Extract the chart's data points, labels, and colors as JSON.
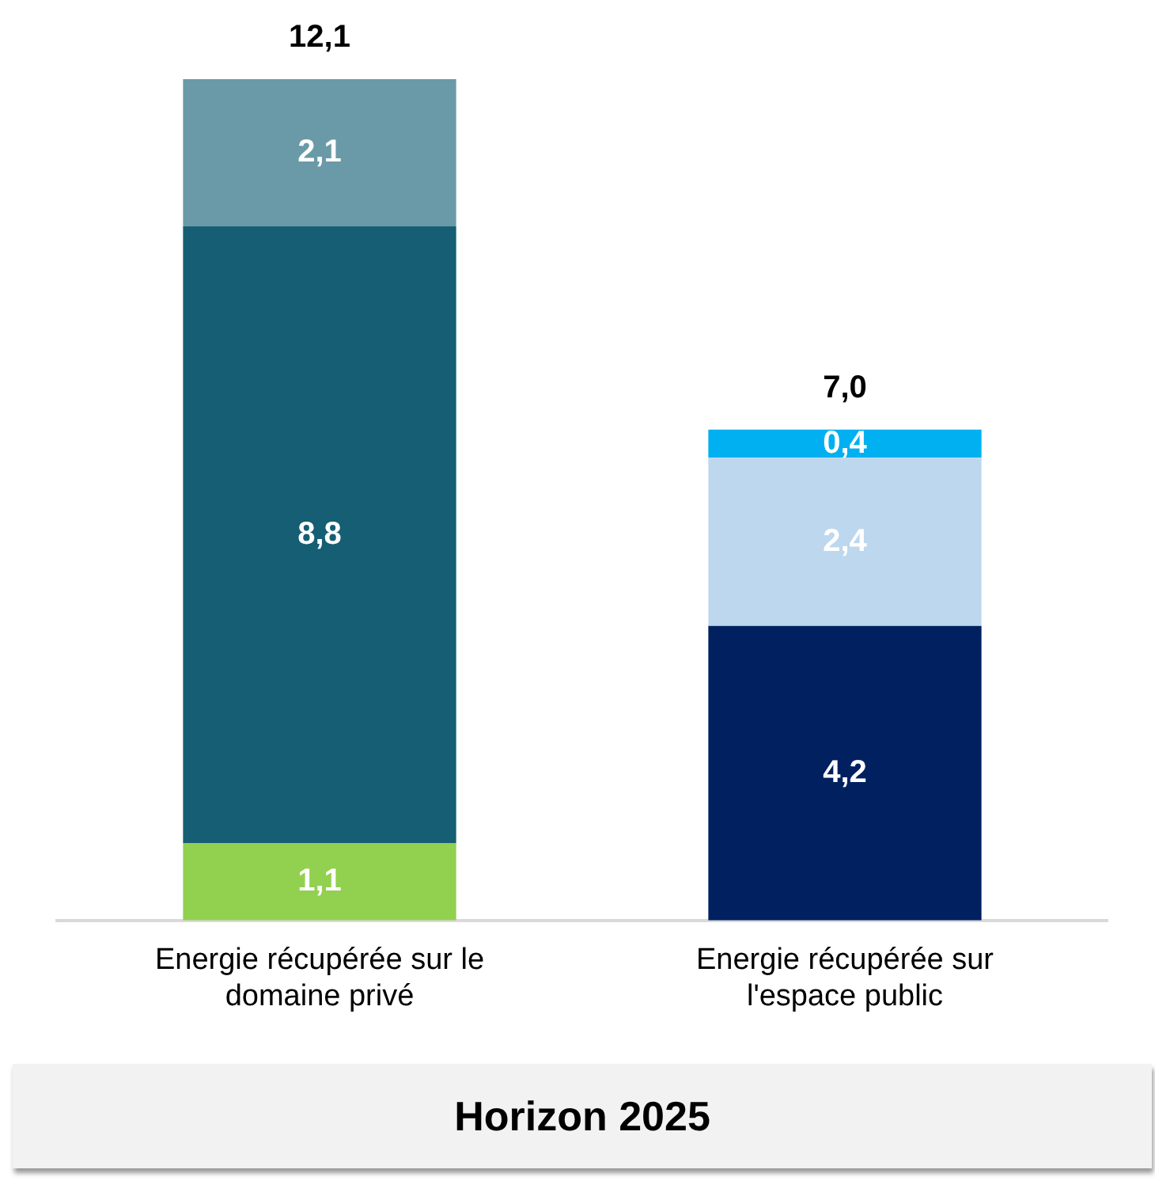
{
  "chart_data": {
    "type": "bar",
    "stacked": true,
    "xlabel": "Horizon 2025",
    "categories": [
      "Energie récupérée sur le domaine privé",
      "Energie récupérée sur l'espace public"
    ],
    "series": [
      {
        "color": "#92d050",
        "values": [
          1.1,
          null
        ],
        "value_labels": [
          "1,1",
          null
        ]
      },
      {
        "color": "#165e73",
        "values": [
          8.8,
          null
        ],
        "value_labels": [
          "8,8",
          null
        ]
      },
      {
        "color": "#6a9aa8",
        "values": [
          2.1,
          null
        ],
        "value_labels": [
          "2,1",
          null
        ]
      },
      {
        "color": "#002060",
        "values": [
          null,
          4.2
        ],
        "value_labels": [
          null,
          "4,2"
        ]
      },
      {
        "color": "#bdd7ee",
        "values": [
          null,
          2.4
        ],
        "value_labels": [
          null,
          "2,4"
        ]
      },
      {
        "color": "#00b0f0",
        "values": [
          null,
          0.4
        ],
        "value_labels": [
          null,
          "0,4"
        ]
      }
    ],
    "totals": [
      "12,1",
      "7,0"
    ],
    "legend": false,
    "grid": false
  }
}
